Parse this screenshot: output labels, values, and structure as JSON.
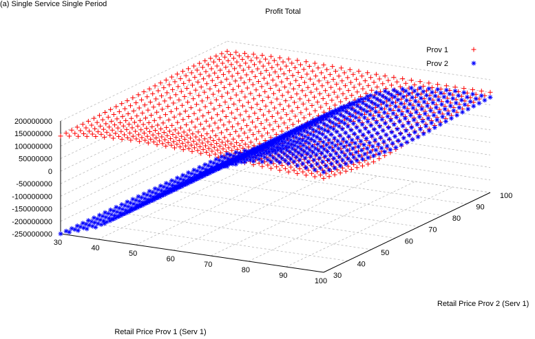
{
  "caption": "(a) Single Service Single Period",
  "chart_data": {
    "type": "scatter",
    "subtype": "3d-surface-points",
    "title": "Profit Total",
    "xlabel": "Retail Price Prov 1 (Serv 1)",
    "ylabel": "Retail Price Prov 2 (Serv 1)",
    "zlabel": "",
    "xlim": [
      30,
      100
    ],
    "ylim": [
      30,
      100
    ],
    "zlim": [
      -250000000,
      200000000
    ],
    "x_ticks": [
      "30",
      "40",
      "50",
      "60",
      "70",
      "80",
      "90",
      "100"
    ],
    "y_ticks": [
      "30",
      "40",
      "50",
      "60",
      "70",
      "80",
      "90",
      "100"
    ],
    "z_ticks": [
      "200000000",
      "150000000",
      "100000000",
      "50000000",
      "0",
      "-50000000",
      "-100000000",
      "-150000000",
      "-200000000",
      "-250000000"
    ],
    "grid": true,
    "legend_position": "top-right",
    "series": [
      {
        "name": "Prov 1",
        "marker": "plus",
        "color": "#ff0000",
        "x": [
          30,
          40,
          50,
          60,
          70,
          80,
          90,
          100
        ],
        "y": [
          30,
          40,
          50,
          60,
          70,
          80,
          90,
          100
        ],
        "z": [
          [
            140000000,
            160000000,
            165000000,
            160000000,
            150000000,
            140000000,
            130000000,
            125000000
          ],
          [
            145000000,
            150000000,
            140000000,
            130000000,
            125000000,
            118000000,
            112000000,
            110000000
          ],
          [
            150000000,
            135000000,
            115000000,
            105000000,
            100000000,
            98000000,
            95000000,
            95000000
          ],
          [
            155000000,
            140000000,
            120000000,
            110000000,
            108000000,
            106000000,
            104000000,
            102000000
          ],
          [
            160000000,
            150000000,
            135000000,
            125000000,
            120000000,
            118000000,
            116000000,
            115000000
          ],
          [
            165000000,
            160000000,
            150000000,
            140000000,
            135000000,
            132000000,
            130000000,
            128000000
          ],
          [
            165000000,
            165000000,
            160000000,
            150000000,
            145000000,
            142000000,
            140000000,
            138000000
          ],
          [
            160000000,
            165000000,
            165000000,
            160000000,
            155000000,
            152000000,
            150000000,
            150000000
          ]
        ]
      },
      {
        "name": "Prov 2",
        "marker": "star",
        "color": "#0000ff",
        "x": [
          30,
          40,
          50,
          60,
          70,
          80,
          90,
          100
        ],
        "y": [
          30,
          40,
          50,
          60,
          70,
          80,
          90,
          100
        ],
        "z": [
          [
            -250000000,
            -200000000,
            -100000000,
            0,
            90000000,
            150000000,
            165000000,
            150000000
          ],
          [
            -250000000,
            -200000000,
            -100000000,
            0,
            90000000,
            140000000,
            150000000,
            140000000
          ],
          [
            -250000000,
            -200000000,
            -100000000,
            0,
            80000000,
            120000000,
            130000000,
            120000000
          ],
          [
            -250000000,
            -200000000,
            -100000000,
            0,
            70000000,
            110000000,
            115000000,
            110000000
          ],
          [
            -250000000,
            -200000000,
            -100000000,
            0,
            70000000,
            110000000,
            115000000,
            110000000
          ],
          [
            -250000000,
            -200000000,
            -100000000,
            0,
            75000000,
            115000000,
            122000000,
            118000000
          ],
          [
            -250000000,
            -200000000,
            -100000000,
            0,
            80000000,
            120000000,
            130000000,
            125000000
          ],
          [
            -250000000,
            -200000000,
            -100000000,
            0,
            85000000,
            125000000,
            135000000,
            130000000
          ]
        ]
      }
    ]
  }
}
